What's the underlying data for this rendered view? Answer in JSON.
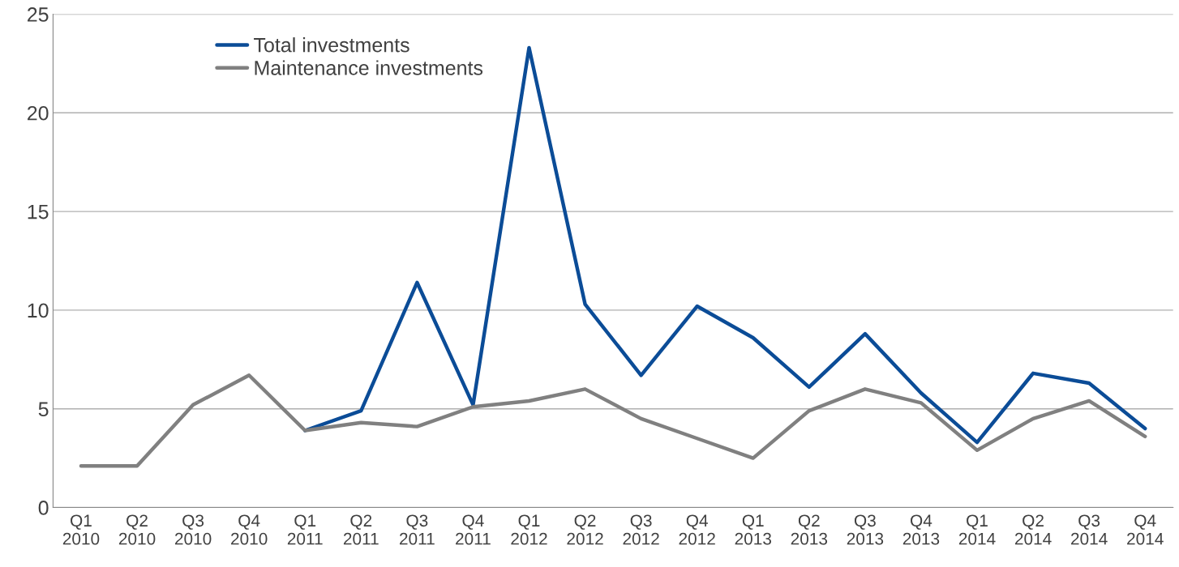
{
  "chart_data": {
    "type": "line",
    "categories": [
      "Q1\n2010",
      "Q2\n2010",
      "Q3\n2010",
      "Q4\n2010",
      "Q1\n2011",
      "Q2\n2011",
      "Q3\n2011",
      "Q4\n2011",
      "Q1\n2012",
      "Q2\n2012",
      "Q3\n2012",
      "Q4\n2012",
      "Q1\n2013",
      "Q2\n2013",
      "Q3\n2013",
      "Q4\n2013",
      "Q1\n2014",
      "Q2\n2014",
      "Q3\n2014",
      "Q4\n2014"
    ],
    "series": [
      {
        "name": "Total investments",
        "color": "#0b4c97",
        "values": [
          null,
          null,
          null,
          null,
          3.9,
          4.9,
          11.4,
          5.2,
          23.3,
          10.3,
          6.7,
          10.2,
          8.6,
          6.1,
          8.8,
          5.8,
          3.3,
          6.8,
          6.3,
          4.0
        ]
      },
      {
        "name": "Maintenance investments",
        "color": "#808080",
        "values": [
          2.1,
          2.1,
          5.2,
          6.7,
          3.9,
          4.3,
          4.1,
          5.1,
          5.4,
          6.0,
          4.5,
          3.5,
          2.5,
          4.9,
          6.0,
          5.3,
          2.9,
          4.5,
          5.4,
          3.6
        ]
      }
    ],
    "ylim": [
      0,
      25
    ],
    "yticks": [
      0,
      5,
      10,
      15,
      20,
      25
    ],
    "grid": "y",
    "legend": "top left",
    "marker": "none",
    "line_style": "solid"
  }
}
